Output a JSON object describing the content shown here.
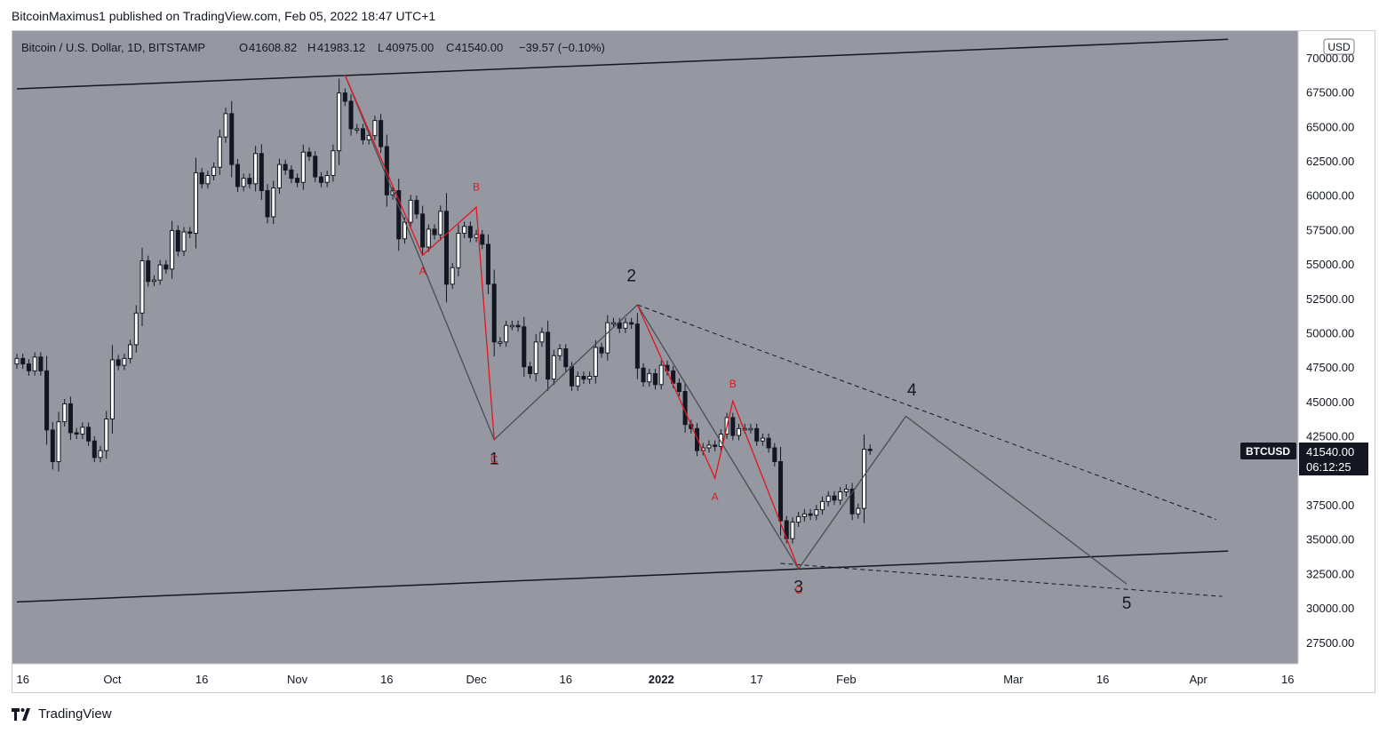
{
  "header": {
    "published_line": "BitcoinMaximus1 published on TradingView.com, Feb 05, 2022 18:47 UTC+1"
  },
  "symbol_bar": {
    "title": "Bitcoin / U.S. Dollar, 1D, BITSTAMP",
    "o_label": "O",
    "o_value": "41608.82",
    "h_label": "H",
    "h_value": "41983.12",
    "l_label": "L",
    "l_value": "40975.00",
    "c_label": "C",
    "c_value": "41540.00",
    "change": "−39.57 (−0.10%)"
  },
  "price_axis": {
    "currency": "USD",
    "ticker": "BTCUSD",
    "last_price": "41540.00",
    "countdown": "06:12:25"
  },
  "footer": {
    "brand": "TradingView"
  },
  "colors": {
    "plot_bg": "#9598a1",
    "bull_candle": "#ffffff",
    "bear_candle": "#131722",
    "wave_line": "#4a4d55",
    "correction_line": "#e0161e",
    "channel_line": "#131722"
  },
  "chart_data": {
    "type": "candlestick",
    "title": "Bitcoin / U.S. Dollar, 1D, BITSTAMP",
    "ylabel": "USD",
    "ylim": [
      26000,
      72000
    ],
    "y_ticks": [
      70000,
      67500,
      65000,
      62500,
      60000,
      57500,
      55000,
      52500,
      50000,
      47500,
      45000,
      42500,
      37500,
      35000,
      32500,
      30000,
      27500
    ],
    "y_tick_labels": [
      "70000.00",
      "67500.00",
      "65000.00",
      "62500.00",
      "60000.00",
      "57500.00",
      "55000.00",
      "52500.00",
      "50000.00",
      "47500.00",
      "45000.00",
      "42500.00",
      "37500.00",
      "35000.00",
      "32500.00",
      "30000.00",
      "27500.00"
    ],
    "x_start_date": "2021-09-15",
    "x_end_date": "2022-04-17",
    "x_ticks": [
      {
        "date": "2021-09-16",
        "label": "16",
        "bold": false
      },
      {
        "date": "2021-10-01",
        "label": "Oct",
        "bold": false
      },
      {
        "date": "2021-10-16",
        "label": "16",
        "bold": false
      },
      {
        "date": "2021-11-01",
        "label": "Nov",
        "bold": false
      },
      {
        "date": "2021-11-16",
        "label": "16",
        "bold": false
      },
      {
        "date": "2021-12-01",
        "label": "Dec",
        "bold": false
      },
      {
        "date": "2021-12-16",
        "label": "16",
        "bold": false
      },
      {
        "date": "2022-01-01",
        "label": "2022",
        "bold": true
      },
      {
        "date": "2022-01-17",
        "label": "17",
        "bold": false
      },
      {
        "date": "2022-02-01",
        "label": "Feb",
        "bold": false
      },
      {
        "date": "2022-03-01",
        "label": "Mar",
        "bold": false
      },
      {
        "date": "2022-03-16",
        "label": "16",
        "bold": false
      },
      {
        "date": "2022-04-01",
        "label": "Apr",
        "bold": false
      },
      {
        "date": "2022-04-16",
        "label": "16",
        "bold": false
      }
    ],
    "closes": [
      {
        "date": "2021-09-15",
        "close": 48200
      },
      {
        "date": "2021-09-16",
        "close": 47800
      },
      {
        "date": "2021-09-17",
        "close": 47300
      },
      {
        "date": "2021-09-18",
        "close": 48300
      },
      {
        "date": "2021-09-19",
        "close": 47300
      },
      {
        "date": "2021-09-20",
        "close": 43000
      },
      {
        "date": "2021-09-21",
        "close": 40700
      },
      {
        "date": "2021-09-22",
        "close": 43600
      },
      {
        "date": "2021-09-23",
        "close": 44900
      },
      {
        "date": "2021-09-24",
        "close": 42800
      },
      {
        "date": "2021-09-25",
        "close": 42700
      },
      {
        "date": "2021-09-26",
        "close": 43200
      },
      {
        "date": "2021-09-27",
        "close": 42200
      },
      {
        "date": "2021-09-28",
        "close": 41000
      },
      {
        "date": "2021-09-29",
        "close": 41500
      },
      {
        "date": "2021-09-30",
        "close": 43800
      },
      {
        "date": "2021-10-01",
        "close": 48100
      },
      {
        "date": "2021-10-02",
        "close": 47700
      },
      {
        "date": "2021-10-03",
        "close": 48200
      },
      {
        "date": "2021-10-04",
        "close": 49200
      },
      {
        "date": "2021-10-05",
        "close": 51500
      },
      {
        "date": "2021-10-06",
        "close": 55300
      },
      {
        "date": "2021-10-07",
        "close": 53800
      },
      {
        "date": "2021-10-08",
        "close": 53900
      },
      {
        "date": "2021-10-09",
        "close": 55000
      },
      {
        "date": "2021-10-10",
        "close": 54700
      },
      {
        "date": "2021-10-11",
        "close": 57500
      },
      {
        "date": "2021-10-12",
        "close": 56000
      },
      {
        "date": "2021-10-13",
        "close": 57400
      },
      {
        "date": "2021-10-14",
        "close": 57300
      },
      {
        "date": "2021-10-15",
        "close": 61700
      },
      {
        "date": "2021-10-16",
        "close": 60900
      },
      {
        "date": "2021-10-17",
        "close": 61500
      },
      {
        "date": "2021-10-18",
        "close": 62100
      },
      {
        "date": "2021-10-19",
        "close": 64300
      },
      {
        "date": "2021-10-20",
        "close": 66000
      },
      {
        "date": "2021-10-21",
        "close": 62300
      },
      {
        "date": "2021-10-22",
        "close": 60700
      },
      {
        "date": "2021-10-23",
        "close": 61300
      },
      {
        "date": "2021-10-24",
        "close": 60900
      },
      {
        "date": "2021-10-25",
        "close": 63100
      },
      {
        "date": "2021-10-26",
        "close": 60400
      },
      {
        "date": "2021-10-27",
        "close": 58500
      },
      {
        "date": "2021-10-28",
        "close": 60600
      },
      {
        "date": "2021-10-29",
        "close": 62300
      },
      {
        "date": "2021-10-30",
        "close": 61900
      },
      {
        "date": "2021-10-31",
        "close": 61300
      },
      {
        "date": "2021-11-01",
        "close": 61000
      },
      {
        "date": "2021-11-02",
        "close": 63200
      },
      {
        "date": "2021-11-03",
        "close": 62900
      },
      {
        "date": "2021-11-04",
        "close": 61400
      },
      {
        "date": "2021-11-05",
        "close": 61000
      },
      {
        "date": "2021-11-06",
        "close": 61500
      },
      {
        "date": "2021-11-07",
        "close": 63300
      },
      {
        "date": "2021-11-08",
        "close": 67500
      },
      {
        "date": "2021-11-09",
        "close": 66900
      },
      {
        "date": "2021-11-10",
        "close": 64900
      },
      {
        "date": "2021-11-11",
        "close": 64900
      },
      {
        "date": "2021-11-12",
        "close": 64100
      },
      {
        "date": "2021-11-13",
        "close": 64400
      },
      {
        "date": "2021-11-14",
        "close": 65500
      },
      {
        "date": "2021-11-15",
        "close": 63600
      },
      {
        "date": "2021-11-16",
        "close": 60100
      },
      {
        "date": "2021-11-17",
        "close": 60400
      },
      {
        "date": "2021-11-18",
        "close": 56900
      },
      {
        "date": "2021-11-19",
        "close": 58100
      },
      {
        "date": "2021-11-20",
        "close": 59700
      },
      {
        "date": "2021-11-21",
        "close": 58700
      },
      {
        "date": "2021-11-22",
        "close": 56300
      },
      {
        "date": "2021-11-23",
        "close": 57600
      },
      {
        "date": "2021-11-24",
        "close": 57200
      },
      {
        "date": "2021-11-25",
        "close": 58900
      },
      {
        "date": "2021-11-26",
        "close": 53600
      },
      {
        "date": "2021-11-27",
        "close": 54800
      },
      {
        "date": "2021-11-28",
        "close": 57300
      },
      {
        "date": "2021-11-29",
        "close": 57800
      },
      {
        "date": "2021-11-30",
        "close": 57000
      },
      {
        "date": "2021-12-01",
        "close": 57200
      },
      {
        "date": "2021-12-02",
        "close": 56500
      },
      {
        "date": "2021-12-03",
        "close": 53600
      },
      {
        "date": "2021-12-04",
        "close": 49400
      },
      {
        "date": "2021-12-05",
        "close": 49400
      },
      {
        "date": "2021-12-06",
        "close": 50600
      },
      {
        "date": "2021-12-07",
        "close": 50600
      },
      {
        "date": "2021-12-08",
        "close": 50500
      },
      {
        "date": "2021-12-09",
        "close": 47600
      },
      {
        "date": "2021-12-10",
        "close": 47100
      },
      {
        "date": "2021-12-11",
        "close": 49400
      },
      {
        "date": "2021-12-12",
        "close": 50100
      },
      {
        "date": "2021-12-13",
        "close": 46700
      },
      {
        "date": "2021-12-14",
        "close": 48400
      },
      {
        "date": "2021-12-15",
        "close": 48900
      },
      {
        "date": "2021-12-16",
        "close": 47600
      },
      {
        "date": "2021-12-17",
        "close": 46200
      },
      {
        "date": "2021-12-18",
        "close": 46900
      },
      {
        "date": "2021-12-19",
        "close": 46700
      },
      {
        "date": "2021-12-20",
        "close": 46900
      },
      {
        "date": "2021-12-21",
        "close": 49000
      },
      {
        "date": "2021-12-22",
        "close": 48600
      },
      {
        "date": "2021-12-23",
        "close": 50800
      },
      {
        "date": "2021-12-24",
        "close": 50800
      },
      {
        "date": "2021-12-25",
        "close": 50400
      },
      {
        "date": "2021-12-26",
        "close": 50800
      },
      {
        "date": "2021-12-27",
        "close": 50700
      },
      {
        "date": "2021-12-28",
        "close": 47500
      },
      {
        "date": "2021-12-29",
        "close": 46500
      },
      {
        "date": "2021-12-30",
        "close": 47100
      },
      {
        "date": "2021-12-31",
        "close": 46300
      },
      {
        "date": "2022-01-01",
        "close": 47700
      },
      {
        "date": "2022-01-02",
        "close": 47300
      },
      {
        "date": "2022-01-03",
        "close": 46400
      },
      {
        "date": "2022-01-04",
        "close": 45800
      },
      {
        "date": "2022-01-05",
        "close": 43400
      },
      {
        "date": "2022-01-06",
        "close": 43100
      },
      {
        "date": "2022-01-07",
        "close": 41500
      },
      {
        "date": "2022-01-08",
        "close": 41700
      },
      {
        "date": "2022-01-09",
        "close": 41900
      },
      {
        "date": "2022-01-10",
        "close": 41800
      },
      {
        "date": "2022-01-11",
        "close": 42700
      },
      {
        "date": "2022-01-12",
        "close": 43900
      },
      {
        "date": "2022-01-13",
        "close": 42600
      },
      {
        "date": "2022-01-14",
        "close": 43100
      },
      {
        "date": "2022-01-15",
        "close": 43100
      },
      {
        "date": "2022-01-16",
        "close": 43100
      },
      {
        "date": "2022-01-17",
        "close": 42200
      },
      {
        "date": "2022-01-18",
        "close": 42400
      },
      {
        "date": "2022-01-19",
        "close": 41700
      },
      {
        "date": "2022-01-20",
        "close": 40700
      },
      {
        "date": "2022-01-21",
        "close": 36400
      },
      {
        "date": "2022-01-22",
        "close": 35100
      },
      {
        "date": "2022-01-23",
        "close": 36300
      },
      {
        "date": "2022-01-24",
        "close": 36700
      },
      {
        "date": "2022-01-25",
        "close": 36900
      },
      {
        "date": "2022-01-26",
        "close": 36800
      },
      {
        "date": "2022-01-27",
        "close": 37200
      },
      {
        "date": "2022-01-28",
        "close": 37800
      },
      {
        "date": "2022-01-29",
        "close": 38200
      },
      {
        "date": "2022-01-30",
        "close": 37900
      },
      {
        "date": "2022-01-31",
        "close": 38500
      },
      {
        "date": "2022-02-01",
        "close": 38700
      },
      {
        "date": "2022-02-02",
        "close": 36900
      },
      {
        "date": "2022-02-03",
        "close": 37300
      },
      {
        "date": "2022-02-04",
        "close": 41600
      },
      {
        "date": "2022-02-05",
        "close": 41540
      }
    ],
    "channel_lines": [
      {
        "name": "upper",
        "from": {
          "date": "2021-09-15",
          "price": 67800
        },
        "to": {
          "date": "2022-04-06",
          "price": 71400
        }
      },
      {
        "name": "lower",
        "from": {
          "date": "2021-09-15",
          "price": 30500
        },
        "to": {
          "date": "2022-04-06",
          "price": 34200
        }
      }
    ],
    "dashed_lines": [
      {
        "from": {
          "date": "2021-12-28",
          "price": 52100
        },
        "to": {
          "date": "2022-04-04",
          "price": 36500
        }
      },
      {
        "from": {
          "date": "2022-01-21",
          "price": 33300
        },
        "to": {
          "date": "2022-04-05",
          "price": 30900
        }
      }
    ],
    "wave_path": [
      {
        "date": "2021-11-09",
        "price": 68800
      },
      {
        "date": "2021-12-04",
        "price": 42300
      },
      {
        "date": "2021-12-28",
        "price": 52100
      },
      {
        "date": "2022-01-24",
        "price": 32900
      },
      {
        "date": "2022-02-11",
        "price": 44000
      },
      {
        "date": "2022-03-20",
        "price": 31800
      }
    ],
    "correction_paths": [
      [
        {
          "date": "2021-11-09",
          "price": 68800
        },
        {
          "date": "2021-11-22",
          "price": 55700
        },
        {
          "date": "2021-12-01",
          "price": 59200
        },
        {
          "date": "2021-12-04",
          "price": 42300
        }
      ],
      [
        {
          "date": "2021-12-28",
          "price": 52100
        },
        {
          "date": "2022-01-10",
          "price": 39500
        },
        {
          "date": "2022-01-13",
          "price": 45100
        },
        {
          "date": "2022-01-24",
          "price": 32900
        }
      ]
    ],
    "wave_labels": [
      {
        "text": "1",
        "date": "2021-12-04",
        "price": 40500,
        "color": "#131722"
      },
      {
        "text": "2",
        "date": "2021-12-27",
        "price": 53800,
        "color": "#131722"
      },
      {
        "text": "3",
        "date": "2022-01-24",
        "price": 31200,
        "color": "#131722"
      },
      {
        "text": "4",
        "date": "2022-02-12",
        "price": 45500,
        "color": "#131722"
      },
      {
        "text": "5",
        "date": "2022-03-20",
        "price": 30000,
        "color": "#131722"
      }
    ],
    "correction_labels": [
      {
        "text": "A",
        "date": "2021-11-22",
        "price": 54300,
        "color": "#e0161e"
      },
      {
        "text": "B",
        "date": "2021-12-01",
        "price": 60400,
        "color": "#e0161e"
      },
      {
        "text": "C",
        "date": "2021-12-04",
        "price": 40600,
        "color": "#e0161e"
      },
      {
        "text": "A",
        "date": "2022-01-10",
        "price": 37900,
        "color": "#e0161e"
      },
      {
        "text": "B",
        "date": "2022-01-13",
        "price": 46100,
        "color": "#e0161e"
      },
      {
        "text": "C",
        "date": "2022-01-24",
        "price": 31100,
        "color": "#e0161e"
      }
    ],
    "grid": false
  }
}
